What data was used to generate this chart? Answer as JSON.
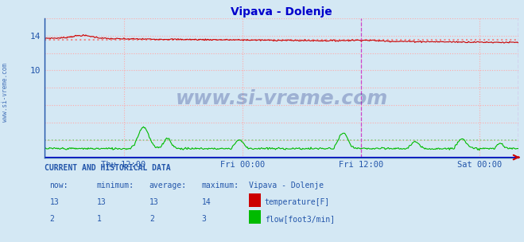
{
  "title": "Vipava - Dolenje",
  "bg_color": "#d4e8f4",
  "plot_bg_color": "#d4e8f4",
  "grid_color": "#ffaaaa",
  "avg_grid_color": "#ffcccc",
  "x_ticks_labels": [
    "Thu 12:00",
    "Fri 00:00",
    "Fri 12:00",
    "Sat 00:00"
  ],
  "x_ticks_pos": [
    0.167,
    0.417,
    0.667,
    0.917
  ],
  "vlines": [
    0.667,
    1.0
  ],
  "ylim": [
    0,
    16
  ],
  "ytick_positions": [
    10,
    14
  ],
  "ytick_labels": [
    "10",
    "14"
  ],
  "temp_color": "#cc0000",
  "flow_color": "#00bb00",
  "avg_temp_color": "#ee8888",
  "avg_flow_color": "#88cc88",
  "temp_avg": 13.5,
  "flow_avg": 2.0,
  "watermark_text": "www.si-vreme.com",
  "watermark_color": "#223388",
  "watermark_alpha": 0.3,
  "ylabel_text": "www.si-vreme.com",
  "ylabel_color": "#2255aa",
  "title_color": "#0000cc",
  "tick_color": "#2255aa",
  "spine_color": "#2255aa",
  "bottom_line_color": "#0000cc",
  "right_marker_color": "#cc0000",
  "vline_color": "#cc44cc",
  "table_header": "CURRENT AND HISTORICAL DATA",
  "table_cols": [
    "now:",
    "minimum:",
    "average:",
    "maximum:",
    "Vipava - Dolenje"
  ],
  "table_temp": [
    "13",
    "13",
    "13",
    "14"
  ],
  "table_flow": [
    "2",
    "1",
    "2",
    "3"
  ],
  "legend_temp": "temperature[F]",
  "legend_flow": "flow[foot3/min]",
  "table_color": "#2255aa"
}
